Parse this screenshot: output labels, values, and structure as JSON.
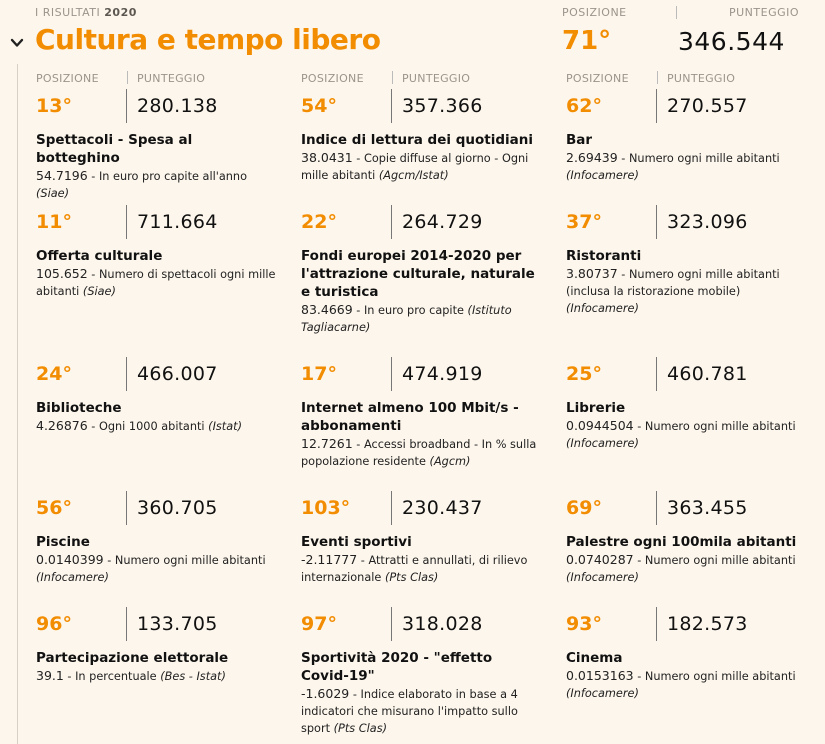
{
  "header": {
    "results_label": "I RISULTATI",
    "results_year": "2020",
    "position_label": "POSIZIONE",
    "score_label": "PUNTEGGIO",
    "title": "Cultura e tempo libero",
    "rank": "71°",
    "score": "346.544"
  },
  "columns": {
    "position_label": "POSIZIONE",
    "score_label": "PUNTEGGIO"
  },
  "cards": [
    {
      "rank": "13°",
      "score": "280.138",
      "name": "Spettacoli - Spesa al botteghino",
      "value": "54.7196",
      "desc": " - In euro pro capite all'anno ",
      "source": "(Siae)"
    },
    {
      "rank": "54°",
      "score": "357.366",
      "name": "Indice di lettura dei quotidiani",
      "value": "38.0431",
      "desc": " - Copie diffuse al giorno - Ogni mille abitanti ",
      "source": "(Agcm/Istat)"
    },
    {
      "rank": "62°",
      "score": "270.557",
      "name": "Bar",
      "value": "2.69439",
      "desc": " - Numero ogni mille abitanti ",
      "source": "(Infocamere)"
    },
    {
      "rank": "11°",
      "score": "711.664",
      "name": "Offerta culturale",
      "value": "105.652",
      "desc": " - Numero di spettacoli ogni mille abitanti ",
      "source": "(Siae)"
    },
    {
      "rank": "22°",
      "score": "264.729",
      "name": "Fondi europei 2014-2020 per l'attrazione culturale, naturale e turistica",
      "value": "83.4669",
      "desc": " - In euro pro capite ",
      "source": "(Istituto Tagliacarne)"
    },
    {
      "rank": "37°",
      "score": "323.096",
      "name": "Ristoranti",
      "value": "3.80737",
      "desc": " - Numero ogni mille abitanti (inclusa la ristorazione mobile) ",
      "source": "(Infocamere)"
    },
    {
      "rank": "24°",
      "score": "466.007",
      "name": "Biblioteche",
      "value": "4.26876",
      "desc": " - Ogni 1000 abitanti ",
      "source": "(Istat)"
    },
    {
      "rank": "17°",
      "score": "474.919",
      "name": "Internet almeno 100 Mbit/s - abbonamenti",
      "value": "12.7261",
      "desc": " - Accessi broadband - In % sulla popolazione residente ",
      "source": "(Agcm)"
    },
    {
      "rank": "25°",
      "score": "460.781",
      "name": "Librerie",
      "value": "0.0944504",
      "desc": " - Numero ogni mille abitanti ",
      "source": "(Infocamere)"
    },
    {
      "rank": "56°",
      "score": "360.705",
      "name": "Piscine",
      "value": "0.0140399",
      "desc": " - Numero ogni mille abitanti ",
      "source": "(Infocamere)"
    },
    {
      "rank": "103°",
      "score": "230.437",
      "name": "Eventi sportivi",
      "value": "-2.11777",
      "desc": " - Attratti e annullati, di rilievo internazionale ",
      "source": "(Pts Clas)"
    },
    {
      "rank": "69°",
      "score": "363.455",
      "name": "Palestre ogni 100mila abitanti",
      "value": "0.0740287",
      "desc": " - Numero ogni mille abitanti ",
      "source": "(Infocamere)"
    },
    {
      "rank": "96°",
      "score": "133.705",
      "name": "Partecipazione elettorale",
      "value": "39.1",
      "desc": " - In percentuale ",
      "source": "(Bes - Istat)"
    },
    {
      "rank": "97°",
      "score": "318.028",
      "name": "Sportività 2020 - \"effetto Covid-19\"",
      "value": "-1.6029",
      "desc": " - Indice elaborato in base a 4 indicatori che misurano l'impatto sullo sport ",
      "source": "(Pts Clas)"
    },
    {
      "rank": "93°",
      "score": "182.573",
      "name": "Cinema",
      "value": "0.0153163",
      "desc": " - Numero ogni mille abitanti ",
      "source": "(Infocamere)"
    }
  ],
  "colors": {
    "accent": "#f28c00",
    "background": "#fdf6ec"
  },
  "icons": {
    "toggle": "chevron-down-icon"
  }
}
